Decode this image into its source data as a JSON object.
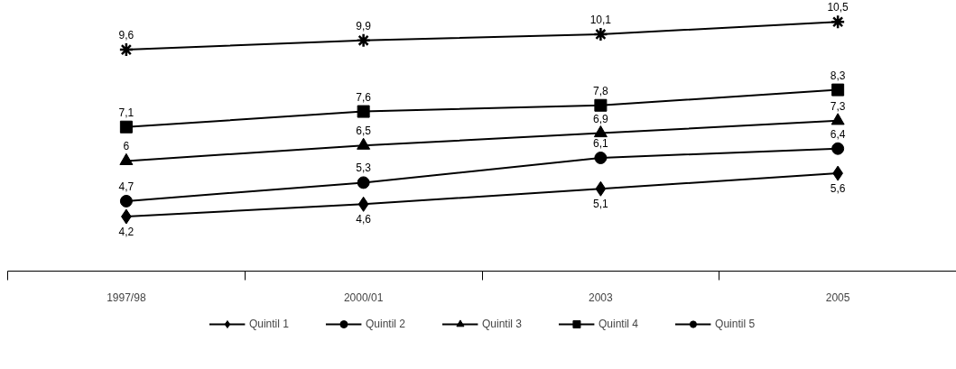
{
  "chart_data": {
    "type": "line",
    "categories": [
      "1997/98",
      "2000/01",
      "2003",
      "2005"
    ],
    "series": [
      {
        "name": "Quintil 1",
        "color": "#000000",
        "marker": "diamond",
        "values": [
          4.2,
          4.6,
          5.1,
          5.6
        ],
        "value_labels": [
          "4,2",
          "4,6",
          "5,1",
          "5,6"
        ]
      },
      {
        "name": "Quintil 2",
        "color": "#000000",
        "marker": "circle",
        "values": [
          4.7,
          5.3,
          6.1,
          6.4
        ],
        "value_labels": [
          "4,7",
          "5,3",
          "6,1",
          "6,4"
        ]
      },
      {
        "name": "Quintil 3",
        "color": "#000000",
        "marker": "triangle",
        "values": [
          6,
          6.5,
          6.9,
          7.3
        ],
        "value_labels": [
          "6",
          "6,5",
          "6,9",
          "7,3"
        ]
      },
      {
        "name": "Quintil 4",
        "color": "#000000",
        "marker": "square",
        "values": [
          7.1,
          7.6,
          7.8,
          8.3
        ],
        "value_labels": [
          "7,1",
          "7,6",
          "7,8",
          "8,3"
        ]
      },
      {
        "name": "Quintil 5",
        "color": "#000000",
        "marker": "cross",
        "values": [
          9.6,
          9.9,
          10.1,
          10.5
        ],
        "value_labels": [
          "9,6",
          "9,9",
          "10,1",
          "10,5"
        ]
      }
    ],
    "legend": "bottom",
    "grid": false,
    "line_style": "solid"
  }
}
